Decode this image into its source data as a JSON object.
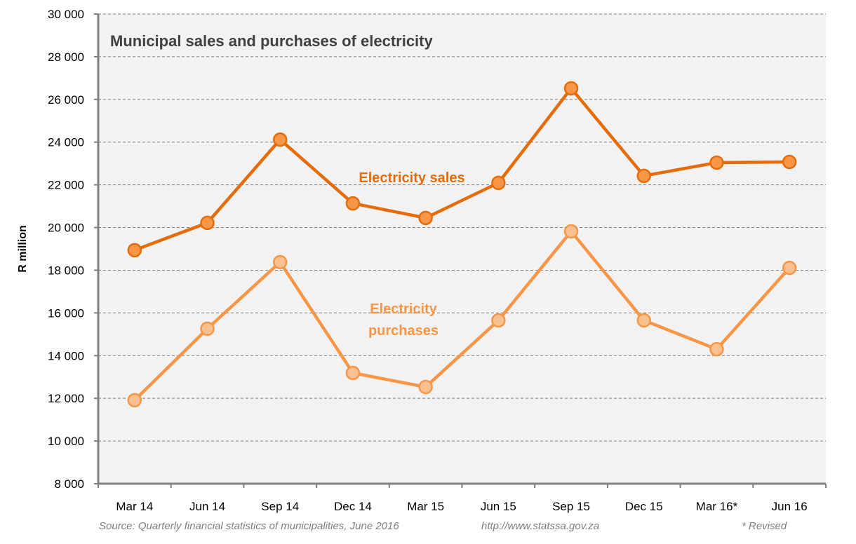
{
  "chart_data": {
    "type": "line",
    "title": "Municipal sales and purchases of electricity",
    "xlabel": "",
    "ylabel": "R million",
    "ylim": [
      8000,
      30000
    ],
    "yticks": [
      8000,
      10000,
      12000,
      14000,
      16000,
      18000,
      20000,
      22000,
      24000,
      26000,
      28000,
      30000
    ],
    "ytick_labels": [
      "8 000",
      "10 000",
      "12 000",
      "14 000",
      "16 000",
      "18 000",
      "20 000",
      "22 000",
      "24 000",
      "26 000",
      "28 000",
      "30 000"
    ],
    "grid": true,
    "categories": [
      "Mar 14",
      "Jun 14",
      "Sep 14",
      "Dec 14",
      "Mar 15",
      "Jun 15",
      "Sep 15",
      "Dec 15",
      "Mar 16*",
      "Jun 16"
    ],
    "series": [
      {
        "name": "Electricity sales",
        "color": "#E46C0A",
        "marker_fill": "#F79646",
        "values": [
          18940,
          20220,
          24120,
          21130,
          20450,
          22090,
          26520,
          22420,
          23040,
          23070
        ]
      },
      {
        "name": "Electricity purchases",
        "color": "#F79646",
        "marker_fill": "#FAC090",
        "values": [
          11910,
          15260,
          18380,
          13190,
          12530,
          15650,
          19820,
          15650,
          14300,
          18110
        ]
      }
    ],
    "annotations": [
      {
        "text": "Electricity sales",
        "series": 0
      },
      {
        "text": "Electricity\npurchases",
        "series": 1
      }
    ]
  },
  "footer": {
    "source": "Source: Quarterly financial statistics of municipalities, June 2016",
    "url": "http://www.statssa.gov.za",
    "note": "* Revised"
  }
}
